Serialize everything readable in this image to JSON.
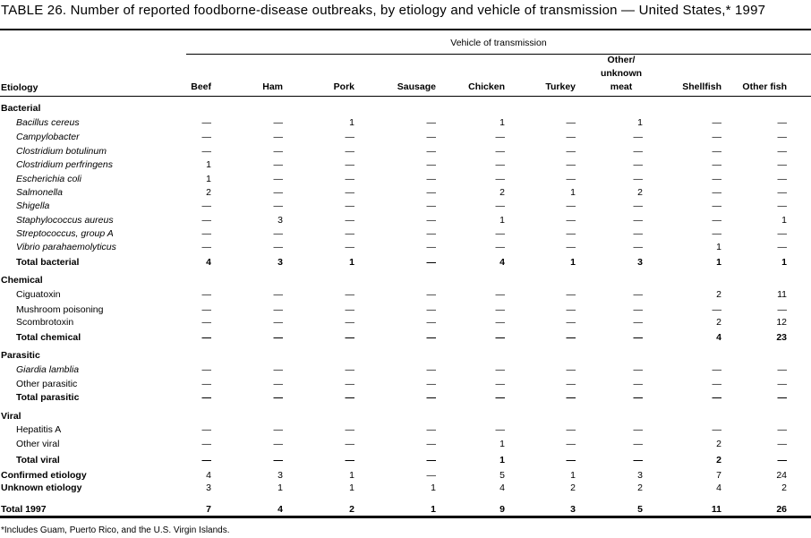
{
  "title": "TABLE 26. Number of reported foodborne-disease outbreaks, by etiology and vehicle of transmission — United States,* 1997",
  "spanner": "Vehicle of transmission",
  "etiology_header": "Etiology",
  "columns": [
    "Beef",
    "Ham",
    "Pork",
    "Sausage",
    "Chicken",
    "Turkey",
    "Other/ unknown meat",
    "Shellfish",
    "Other fish"
  ],
  "rows": [
    {
      "label": "Bacterial",
      "kind": "section",
      "values": []
    },
    {
      "label": "Bacillus cereus",
      "kind": "item",
      "italic": true,
      "values": [
        "—",
        "—",
        "1",
        "—",
        "1",
        "—",
        "1",
        "—",
        "—"
      ]
    },
    {
      "label": "Campylobacter",
      "kind": "item",
      "italic": true,
      "values": [
        "—",
        "—",
        "—",
        "—",
        "—",
        "—",
        "—",
        "—",
        "—"
      ]
    },
    {
      "label": "Clostridium botulinum",
      "kind": "item",
      "italic": true,
      "values": [
        "—",
        "—",
        "—",
        "—",
        "—",
        "—",
        "—",
        "—",
        "—"
      ]
    },
    {
      "label": "Clostridium perfringens",
      "kind": "item",
      "italic": true,
      "values": [
        "1",
        "—",
        "—",
        "—",
        "—",
        "—",
        "—",
        "—",
        "—"
      ]
    },
    {
      "label": "Escherichia coli",
      "kind": "item",
      "italic": true,
      "values": [
        "1",
        "—",
        "—",
        "—",
        "—",
        "—",
        "—",
        "—",
        "—"
      ]
    },
    {
      "label": "Salmonella",
      "kind": "item",
      "italic": true,
      "values": [
        "2",
        "—",
        "—",
        "—",
        "2",
        "1",
        "2",
        "—",
        "—"
      ]
    },
    {
      "label": "Shigella",
      "kind": "item",
      "italic": true,
      "values": [
        "—",
        "—",
        "—",
        "—",
        "—",
        "—",
        "—",
        "—",
        "—"
      ]
    },
    {
      "label": "Staphylococcus aureus",
      "kind": "item",
      "italic": true,
      "values": [
        "—",
        "3",
        "—",
        "—",
        "1",
        "—",
        "—",
        "—",
        "1"
      ]
    },
    {
      "label": "Streptococcus, group A",
      "kind": "item",
      "italic": true,
      "values": [
        "—",
        "—",
        "—",
        "—",
        "—",
        "—",
        "—",
        "—",
        "—"
      ]
    },
    {
      "label": "Vibrio parahaemolyticus",
      "kind": "item",
      "italic": true,
      "values": [
        "—",
        "—",
        "—",
        "—",
        "—",
        "—",
        "—",
        "1",
        "—"
      ]
    },
    {
      "label": "Total bacterial",
      "kind": "total",
      "values": [
        "4",
        "3",
        "1",
        "—",
        "4",
        "1",
        "3",
        "1",
        "1"
      ]
    },
    {
      "label": "Chemical",
      "kind": "section",
      "values": []
    },
    {
      "label": "Ciguatoxin",
      "kind": "item",
      "values": [
        "—",
        "—",
        "—",
        "—",
        "—",
        "—",
        "—",
        "2",
        "11"
      ]
    },
    {
      "label": "Mushroom poisoning",
      "kind": "item",
      "values": [
        "—",
        "—",
        "—",
        "—",
        "—",
        "—",
        "—",
        "—",
        "—"
      ]
    },
    {
      "label": "Scombrotoxin",
      "kind": "item",
      "values": [
        "—",
        "—",
        "—",
        "—",
        "—",
        "—",
        "—",
        "2",
        "12"
      ]
    },
    {
      "label": "Total chemical",
      "kind": "total",
      "values": [
        "—",
        "—",
        "—",
        "—",
        "—",
        "—",
        "—",
        "4",
        "23"
      ]
    },
    {
      "label": "Parasitic",
      "kind": "section",
      "values": []
    },
    {
      "label": "Giardia lamblia",
      "kind": "item",
      "italic": true,
      "values": [
        "—",
        "—",
        "—",
        "—",
        "—",
        "—",
        "—",
        "—",
        "—"
      ]
    },
    {
      "label": "Other parasitic",
      "kind": "item",
      "values": [
        "—",
        "—",
        "—",
        "—",
        "—",
        "—",
        "—",
        "—",
        "—"
      ]
    },
    {
      "label": "Total parasitic",
      "kind": "total",
      "values": [
        "—",
        "—",
        "—",
        "—",
        "—",
        "—",
        "—",
        "—",
        "—"
      ]
    },
    {
      "label": "Viral",
      "kind": "section",
      "values": []
    },
    {
      "label": "Hepatitis A",
      "kind": "item",
      "values": [
        "—",
        "—",
        "—",
        "—",
        "—",
        "—",
        "—",
        "—",
        "—"
      ]
    },
    {
      "label": "Other viral",
      "kind": "item",
      "values": [
        "—",
        "—",
        "—",
        "—",
        "1",
        "—",
        "—",
        "2",
        "—"
      ]
    },
    {
      "label": "Total viral",
      "kind": "total",
      "values": [
        "—",
        "—",
        "—",
        "—",
        "1",
        "—",
        "—",
        "2",
        "—"
      ]
    },
    {
      "label": "Confirmed etiology",
      "kind": "summary",
      "values": [
        "4",
        "3",
        "1",
        "—",
        "5",
        "1",
        "3",
        "7",
        "24"
      ]
    },
    {
      "label": "Unknown etiology",
      "kind": "summary",
      "values": [
        "3",
        "1",
        "1",
        "1",
        "4",
        "2",
        "2",
        "4",
        "2"
      ]
    },
    {
      "label": "Total 1997",
      "kind": "grand",
      "values": [
        "7",
        "4",
        "2",
        "1",
        "9",
        "3",
        "5",
        "11",
        "26"
      ]
    }
  ],
  "footnote": "*Includes Guam, Puerto Rico, and the U.S. Virgin Islands."
}
